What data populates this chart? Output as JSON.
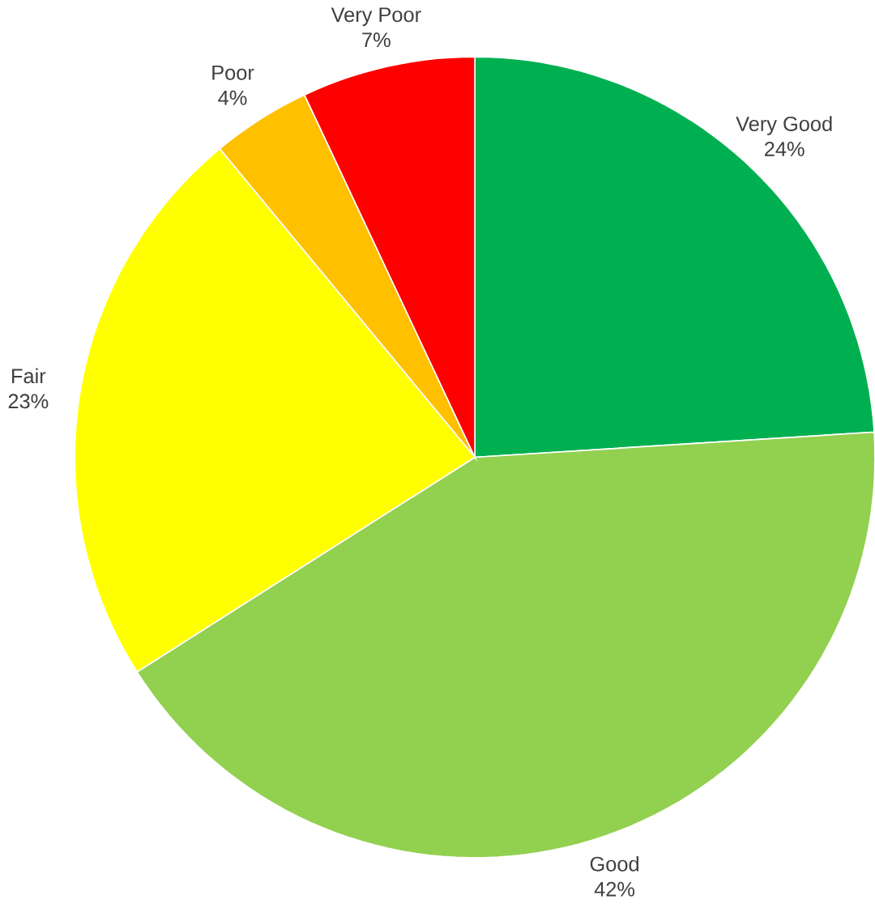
{
  "chart_data": {
    "type": "pie",
    "categories": [
      "Very Good",
      "Good",
      "Fair",
      "Poor",
      "Very Poor"
    ],
    "values": [
      24,
      42,
      23,
      4,
      7
    ],
    "value_labels": [
      "24%",
      "42%",
      "23%",
      "4%",
      "7%"
    ],
    "colors": [
      "#00b050",
      "#92d050",
      "#ffff00",
      "#ffc000",
      "#ff0000"
    ]
  }
}
